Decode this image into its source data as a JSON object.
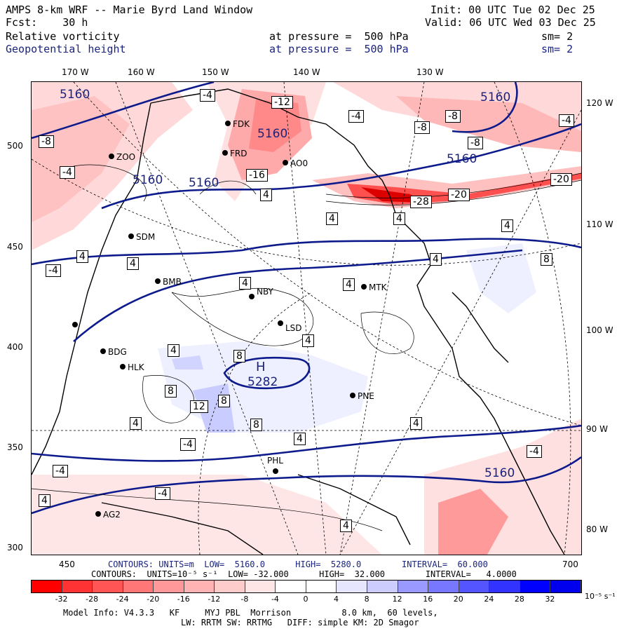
{
  "header": {
    "title": "AMPS 8-km WRF -- Marie Byrd Land Window",
    "init": "Init: 00 UTC Tue 02 Dec 25",
    "fcst": "Fcst:    30 h",
    "valid": "Valid: 06 UTC Wed 03 Dec 25",
    "field1": "Relative vorticity",
    "field1_level": "at pressure =  500 hPa",
    "field1_sm": "sm= 2",
    "field2": "Geopotential height",
    "field2_level": "at pressure =  500 hPa",
    "field2_sm": "sm= 2"
  },
  "map": {
    "lon_top_labels": [
      "170 W",
      "160 W",
      "150 W",
      "140 W",
      "130 W"
    ],
    "lon_right_labels": [
      "120 W",
      "110 W",
      "100 W",
      "90 W",
      "80 W"
    ],
    "y_ticks": [
      "500",
      "450",
      "400",
      "350",
      "300"
    ],
    "x_ticks": [
      "450",
      "700"
    ],
    "stations": [
      "FDK",
      "FRD",
      "AO0",
      "ZOO",
      "SDM",
      "BMB",
      "NBY",
      "MTK",
      "LSD",
      "BDG",
      "HLK",
      "PNE",
      "PHL",
      "AG2"
    ],
    "height_labels": [
      "5160",
      "5160",
      "5160",
      "5160",
      "5160",
      "5160",
      "5160",
      "5282"
    ],
    "high_marker": "H",
    "vorticity_labels": [
      "-4",
      "-8",
      "-12",
      "-16",
      "-20",
      "-28",
      "4",
      "8",
      "12"
    ]
  },
  "contours_info": {
    "line1": "CONTOURS: UNITS=m  LOW=  5160.0      HIGH=  5280.0        INTERVAL=  60.000",
    "line2": "CONTOURS:  UNITS=10⁻⁵ s⁻¹  LOW= -32.000      HIGH=  32.000        INTERVAL=   4.0000"
  },
  "colorbar": {
    "ticks": [
      "-32",
      "-28",
      "-24",
      "-20",
      "-16",
      "-12",
      "-8",
      "-4",
      "0",
      "4",
      "8",
      "12",
      "16",
      "20",
      "24",
      "28",
      "32"
    ],
    "unit": "10⁻⁵ s⁻¹",
    "colors": [
      "#ff0000",
      "#ff3333",
      "#ff5555",
      "#ff7777",
      "#ff9999",
      "#ffb3b3",
      "#ffcccc",
      "#ffe6e6",
      "#ffffff",
      "#ffffff",
      "#e6e6ff",
      "#ccccff",
      "#9999ff",
      "#7777ff",
      "#5555ff",
      "#3333ff",
      "#0000ff",
      "#0000ee"
    ]
  },
  "footer": {
    "line1": "Model Info: V4.3.3   KF     MYJ PBL  Morrison          8.0 km,  60 levels,",
    "line2": "LW: RRTM SW: RRTMG   DIFF: simple KM: 2D Smagor"
  },
  "colors": {
    "height_contour": "#0d1a8c",
    "neg_vort": "#ff0000",
    "pos_vort": "#0000ff"
  }
}
